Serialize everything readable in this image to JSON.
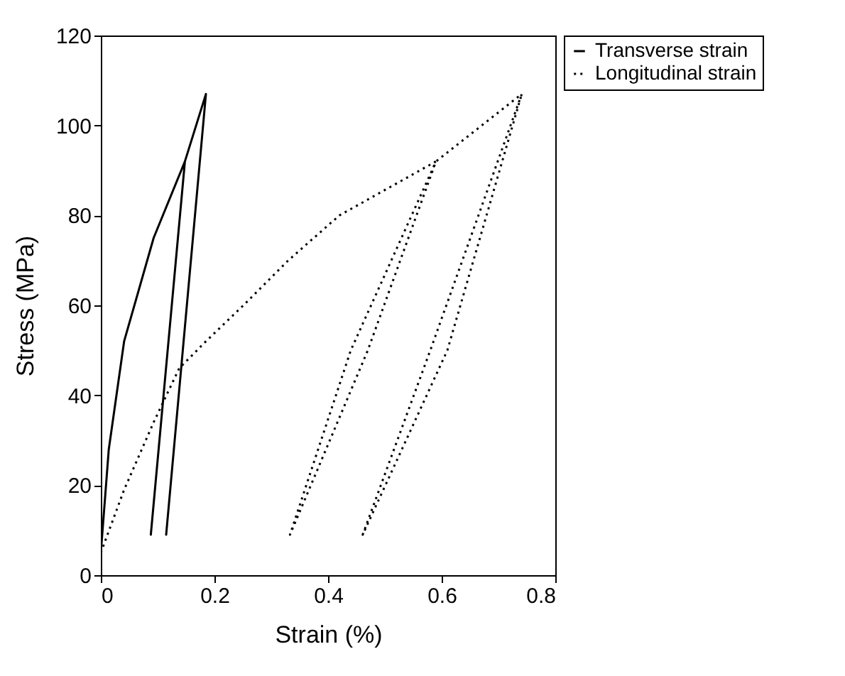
{
  "chart_data": {
    "type": "line",
    "xlabel": "Strain (%)",
    "ylabel": "Stress (MPa)",
    "xlim": [
      0,
      0.8
    ],
    "ylim": [
      0,
      120
    ],
    "xticks": [
      0,
      0.2,
      0.4,
      0.6,
      0.8
    ],
    "yticks": [
      0,
      20,
      40,
      60,
      80,
      100,
      120
    ],
    "grid": false,
    "legend": "right",
    "marker": "none",
    "series": [
      {
        "name": "Transverse strain",
        "color": "#000000",
        "line_style": "solid",
        "x": [
          0,
          0.014,
          0.041,
          0.093,
          0.148,
          0.088,
          0.148,
          0.185,
          0.115,
          0.185
        ],
        "values": [
          5,
          28,
          52,
          75,
          92,
          9,
          92,
          107,
          9,
          107
        ]
      },
      {
        "name": "Longitudinal strain",
        "color": "#000000",
        "line_style": "dotted",
        "x": [
          0,
          0.041,
          0.093,
          0.138,
          0.185,
          0.251,
          0.33,
          0.42,
          0.59,
          0.44,
          0.333,
          0.47,
          0.59,
          0.741,
          0.58,
          0.461,
          0.61,
          0.741
        ],
        "values": [
          5,
          19,
          34,
          46,
          52,
          60,
          70,
          80,
          92,
          50,
          9,
          50,
          92,
          107,
          50,
          9,
          50,
          107
        ]
      }
    ]
  }
}
